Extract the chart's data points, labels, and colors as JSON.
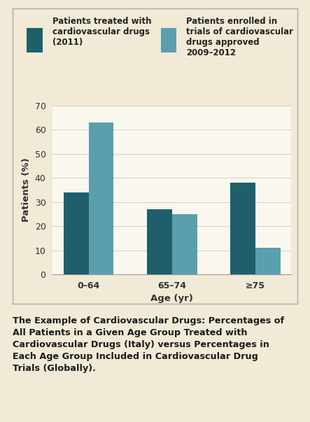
{
  "categories": [
    "0–64",
    "65–74",
    "≥75"
  ],
  "series1_label": "Patients treated with\ncardiovascular drugs\n(2011)",
  "series2_label": "Patients enrolled in\ntrials of cardiovascular\ndrugs approved\n2009–2012",
  "series1_values": [
    34,
    27,
    38
  ],
  "series2_values": [
    63,
    25,
    11
  ],
  "series1_color": "#1f5f6b",
  "series2_color": "#5b9fad",
  "ylabel": "Patients (%)",
  "xlabel": "Age (yr)",
  "ylim": [
    0,
    70
  ],
  "yticks": [
    0,
    10,
    20,
    30,
    40,
    50,
    60,
    70
  ],
  "background_color": "#f0ead6",
  "chart_bg_color": "#faf8ee",
  "caption": "The Example of Cardiovascular Drugs: Percentages of All Patients in a Given Age Group Treated with Cardiovascular Drugs (Italy) versus Percentages in Each Age Group Included in Cardiovascular Drug Trials (Globally).",
  "bar_width": 0.3,
  "legend_fontsize": 8.5,
  "axis_label_fontsize": 9.5,
  "tick_fontsize": 9,
  "caption_fontsize": 9.2
}
